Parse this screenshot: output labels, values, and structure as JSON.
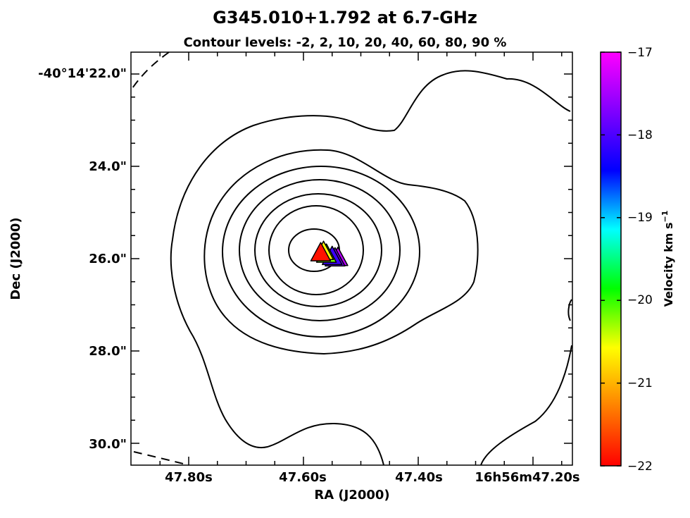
{
  "chart_data": {
    "type": "contour",
    "title": "G345.010+1.792 at 6.7-GHz",
    "subtitle": "Contour levels: -2, 2, 10, 20, 40, 60, 80, 90 %",
    "contour_levels_percent": [
      -2,
      2,
      10,
      20,
      40,
      60,
      80,
      90
    ],
    "xlabel": "RA (J2000)",
    "ylabel": "Dec (J2000)",
    "x_ticks": [
      "47.80s",
      "47.60s",
      "47.40s",
      "16h56m47.20s"
    ],
    "y_ticks": [
      "-40°14'22.0\"",
      "24.0\"",
      "26.0\"",
      "28.0\"",
      "30.0\""
    ],
    "colorbar": {
      "label": "Velocity km s",
      "label_superscript": "−1",
      "ticks": [
        "−17",
        "−18",
        "−19",
        "−20",
        "−21",
        "−22"
      ],
      "range": [
        -22,
        -17
      ],
      "colormap": "gist_rainbow",
      "colors": [
        "#ff0000",
        "#ff8000",
        "#ffff00",
        "#00ff00",
        "#00ffff",
        "#0000ff",
        "#8000ff",
        "#ff00ff"
      ]
    },
    "maser_spots": [
      {
        "ra_s": 47.57,
        "dec_arcsec": 25.85,
        "velocity": -21.9
      },
      {
        "ra_s": 47.565,
        "dec_arcsec": 25.82,
        "velocity": -20.6
      },
      {
        "ra_s": 47.56,
        "dec_arcsec": 25.88,
        "velocity": -20.2
      },
      {
        "ra_s": 47.55,
        "dec_arcsec": 25.93,
        "velocity": -18.1
      },
      {
        "ra_s": 47.545,
        "dec_arcsec": 25.96,
        "velocity": -17.8
      },
      {
        "ra_s": 47.54,
        "dec_arcsec": 25.95,
        "velocity": -17.4
      }
    ]
  }
}
